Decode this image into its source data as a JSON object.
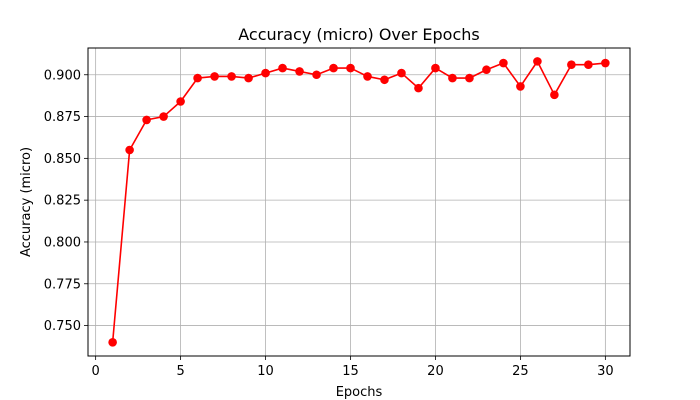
{
  "chart_data": {
    "type": "line",
    "title": "Accuracy (micro) Over Epochs",
    "xlabel": "Epochs",
    "ylabel": "Accuracy (micro)",
    "grid": true,
    "xlim": [
      -0.45,
      31.45
    ],
    "ylim": [
      0.7318,
      0.916
    ],
    "xticks": [
      0,
      5,
      10,
      15,
      20,
      25,
      30
    ],
    "xtick_labels": [
      "0",
      "5",
      "10",
      "15",
      "20",
      "25",
      "30"
    ],
    "yticks": [
      0.75,
      0.775,
      0.8,
      0.825,
      0.85,
      0.875,
      0.9
    ],
    "ytick_labels": [
      "0.750",
      "0.775",
      "0.800",
      "0.825",
      "0.850",
      "0.875",
      "0.900"
    ],
    "series": [
      {
        "color": "#ff0000",
        "x": [
          1,
          2,
          3,
          4,
          5,
          6,
          7,
          8,
          9,
          10,
          11,
          12,
          13,
          14,
          15,
          16,
          17,
          18,
          19,
          20,
          21,
          22,
          23,
          24,
          25,
          26,
          27,
          28,
          29,
          30
        ],
        "y": [
          0.74,
          0.855,
          0.873,
          0.875,
          0.884,
          0.898,
          0.899,
          0.899,
          0.898,
          0.901,
          0.904,
          0.902,
          0.9,
          0.904,
          0.904,
          0.899,
          0.897,
          0.901,
          0.892,
          0.904,
          0.898,
          0.898,
          0.903,
          0.907,
          0.893,
          0.908,
          0.888,
          0.906,
          0.906,
          0.907
        ]
      }
    ]
  }
}
